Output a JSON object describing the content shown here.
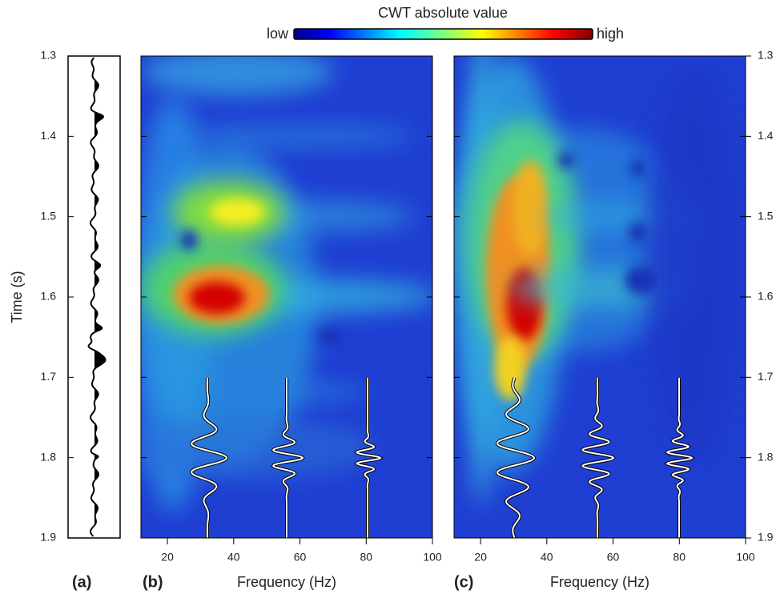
{
  "colorbar": {
    "title": "CWT absolute value",
    "low": "low",
    "high": "high"
  },
  "time_axis": {
    "label": "Time (s)",
    "lim": [
      1.3,
      1.9
    ],
    "ticks": [
      1.3,
      1.4,
      1.5,
      1.6,
      1.7,
      1.8,
      1.9
    ]
  },
  "frequency_axis": {
    "label": "Frequency (Hz)",
    "lim": [
      12,
      100
    ],
    "ticks": [
      20,
      40,
      60,
      80,
      100
    ]
  },
  "panels": [
    "(a)",
    "(b)",
    "(c)"
  ]
}
